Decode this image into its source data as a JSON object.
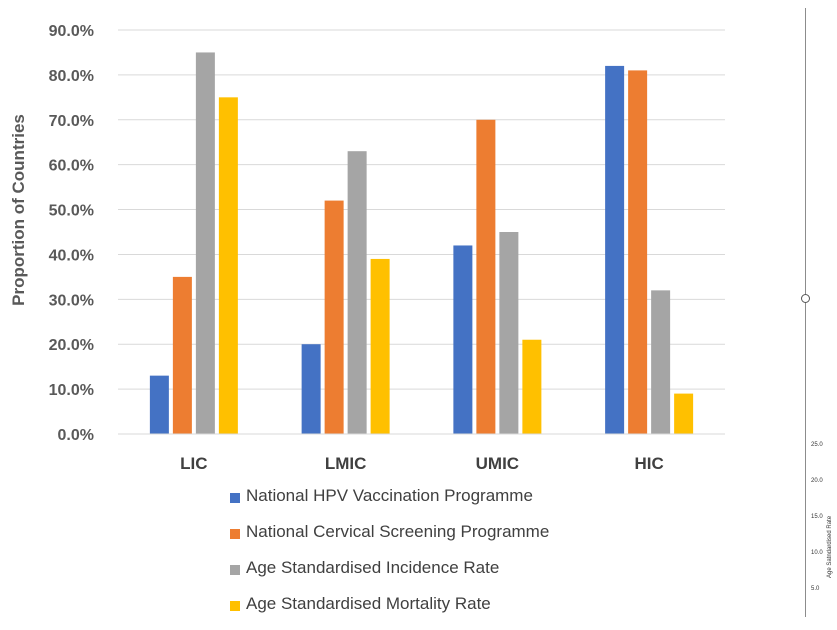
{
  "chart_data": {
    "type": "bar",
    "ylabel": "Proportion of Countries",
    "xlabel": "",
    "ylim": [
      0,
      90
    ],
    "yticks": [
      "0.0%",
      "10.0%",
      "20.0%",
      "30.0%",
      "40.0%",
      "50.0%",
      "60.0%",
      "70.0%",
      "80.0%",
      "90.0%"
    ],
    "grid": true,
    "legend_position": "bottom",
    "categories": [
      "LIC",
      "LMIC",
      "UMIC",
      "HIC"
    ],
    "series": [
      {
        "name": "National HPV Vaccination Programme",
        "color": "#4472C4",
        "values": [
          13,
          20,
          42,
          82
        ]
      },
      {
        "name": "National Cervical Screening Programme",
        "color": "#ED7D31",
        "values": [
          35,
          52,
          70,
          81
        ]
      },
      {
        "name": "Age Standardised Incidence Rate",
        "color": "#A5A5A5",
        "values": [
          85,
          63,
          45,
          32
        ]
      },
      {
        "name": "Age Standardised Mortality Rate",
        "color": "#FFC000",
        "values": [
          75,
          39,
          21,
          9
        ]
      }
    ]
  },
  "side_panel": {
    "axis_label": "Age Satndardised Rate",
    "ticks": [
      "25.0",
      "20.0",
      "15.0",
      "10.0",
      "5.0"
    ]
  }
}
